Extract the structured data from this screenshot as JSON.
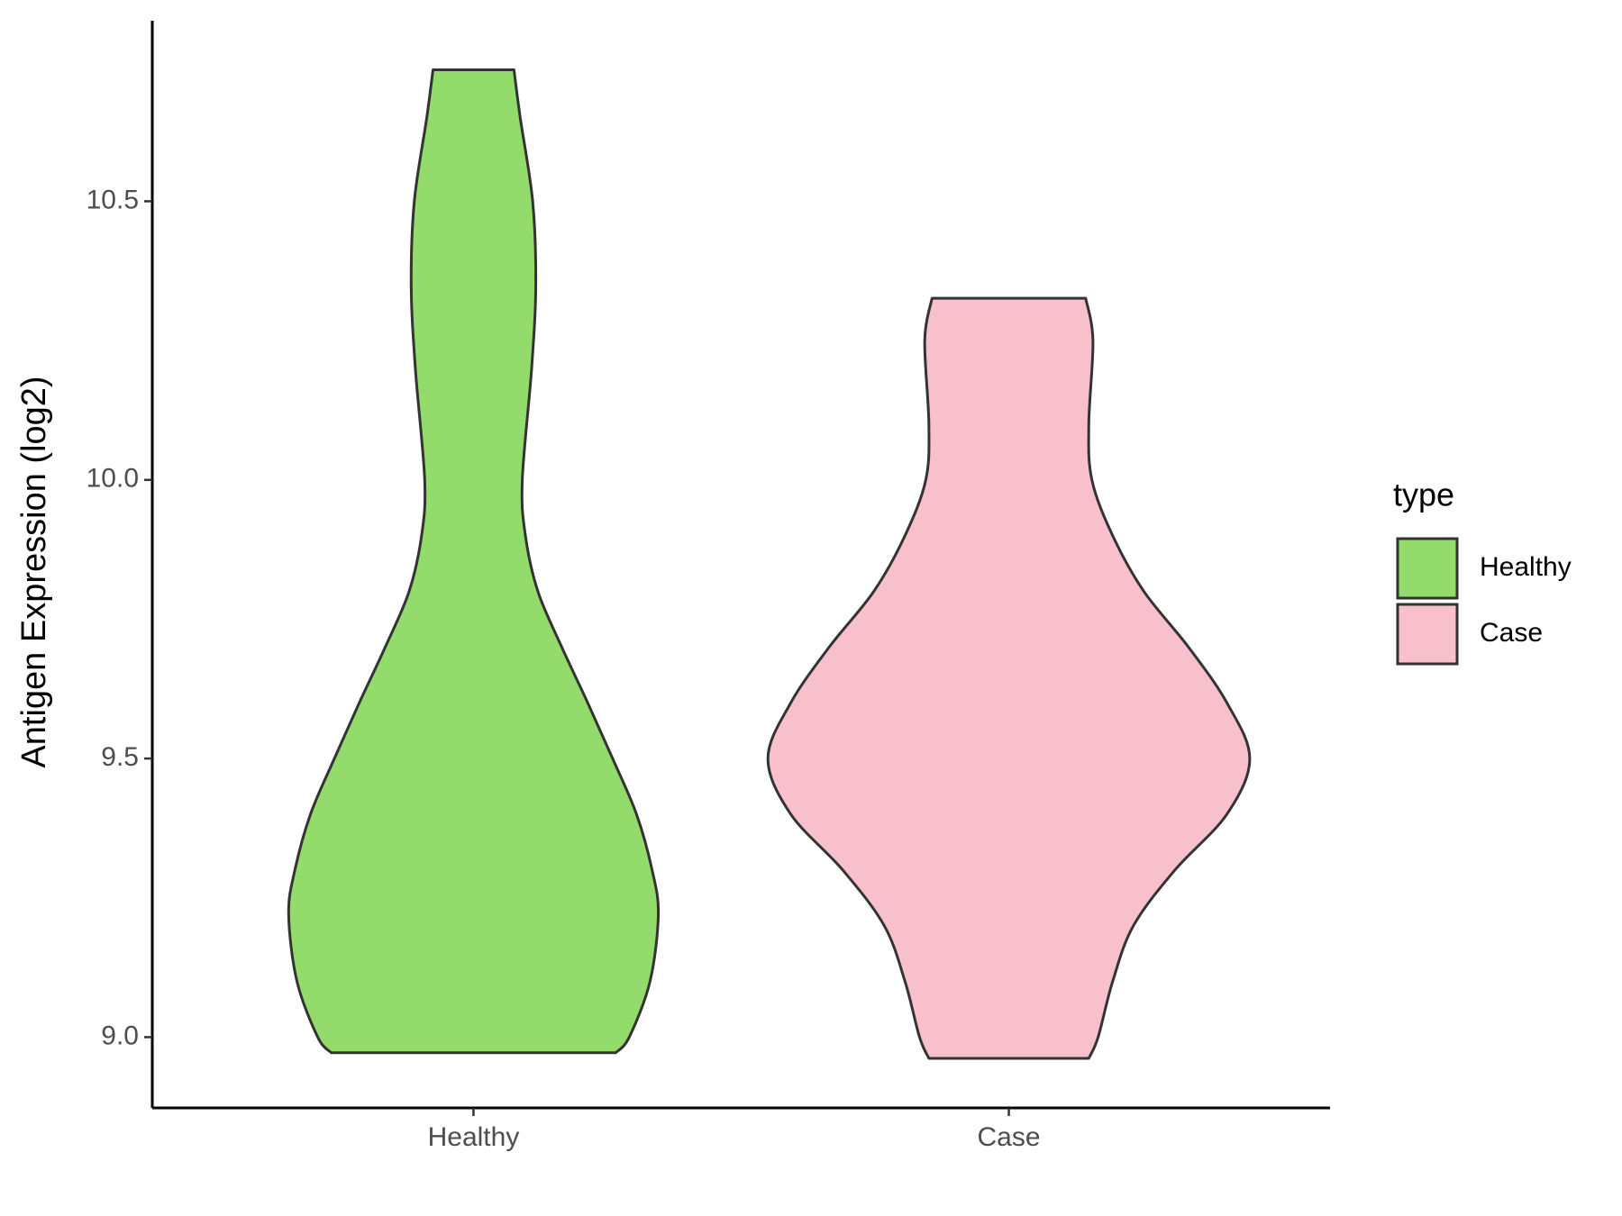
{
  "chart_data": {
    "type": "violin",
    "y_label": "Antigen Expression (log2)",
    "categories": [
      "Healthy",
      "Case"
    ],
    "legend_title": "type",
    "legend": "right",
    "ylim": [
      8.873,
      10.824
    ],
    "yticks": [
      {
        "value": 9,
        "label": "9.0"
      },
      9.5,
      {
        "value": 10,
        "label": "10.0"
      },
      10.5
    ],
    "series": [
      {
        "name": "Healthy",
        "color": "#93DB6B",
        "y": [
          8.972,
          9.0,
          9.1,
          9.22,
          9.3,
          9.4,
          9.5,
          9.6,
          9.7,
          9.8,
          9.9,
          10.0,
          10.2,
          10.35,
          10.5,
          10.65,
          10.736
        ],
        "density": [
          1.37,
          1.5,
          1.7,
          1.78,
          1.72,
          1.57,
          1.34,
          1.1,
          0.85,
          0.62,
          0.5,
          0.47,
          0.56,
          0.6,
          0.57,
          0.45,
          0.39
        ]
      },
      {
        "name": "Case",
        "color": "#F8C0CB",
        "y": [
          8.962,
          9.0,
          9.1,
          9.2,
          9.3,
          9.4,
          9.5,
          9.6,
          9.7,
          9.8,
          9.9,
          10.0,
          10.1,
          10.25,
          10.326
        ],
        "density": [
          0.77,
          0.86,
          1.0,
          1.2,
          1.6,
          2.1,
          2.32,
          2.1,
          1.73,
          1.3,
          1.0,
          0.8,
          0.77,
          0.81,
          0.74
        ]
      }
    ]
  }
}
